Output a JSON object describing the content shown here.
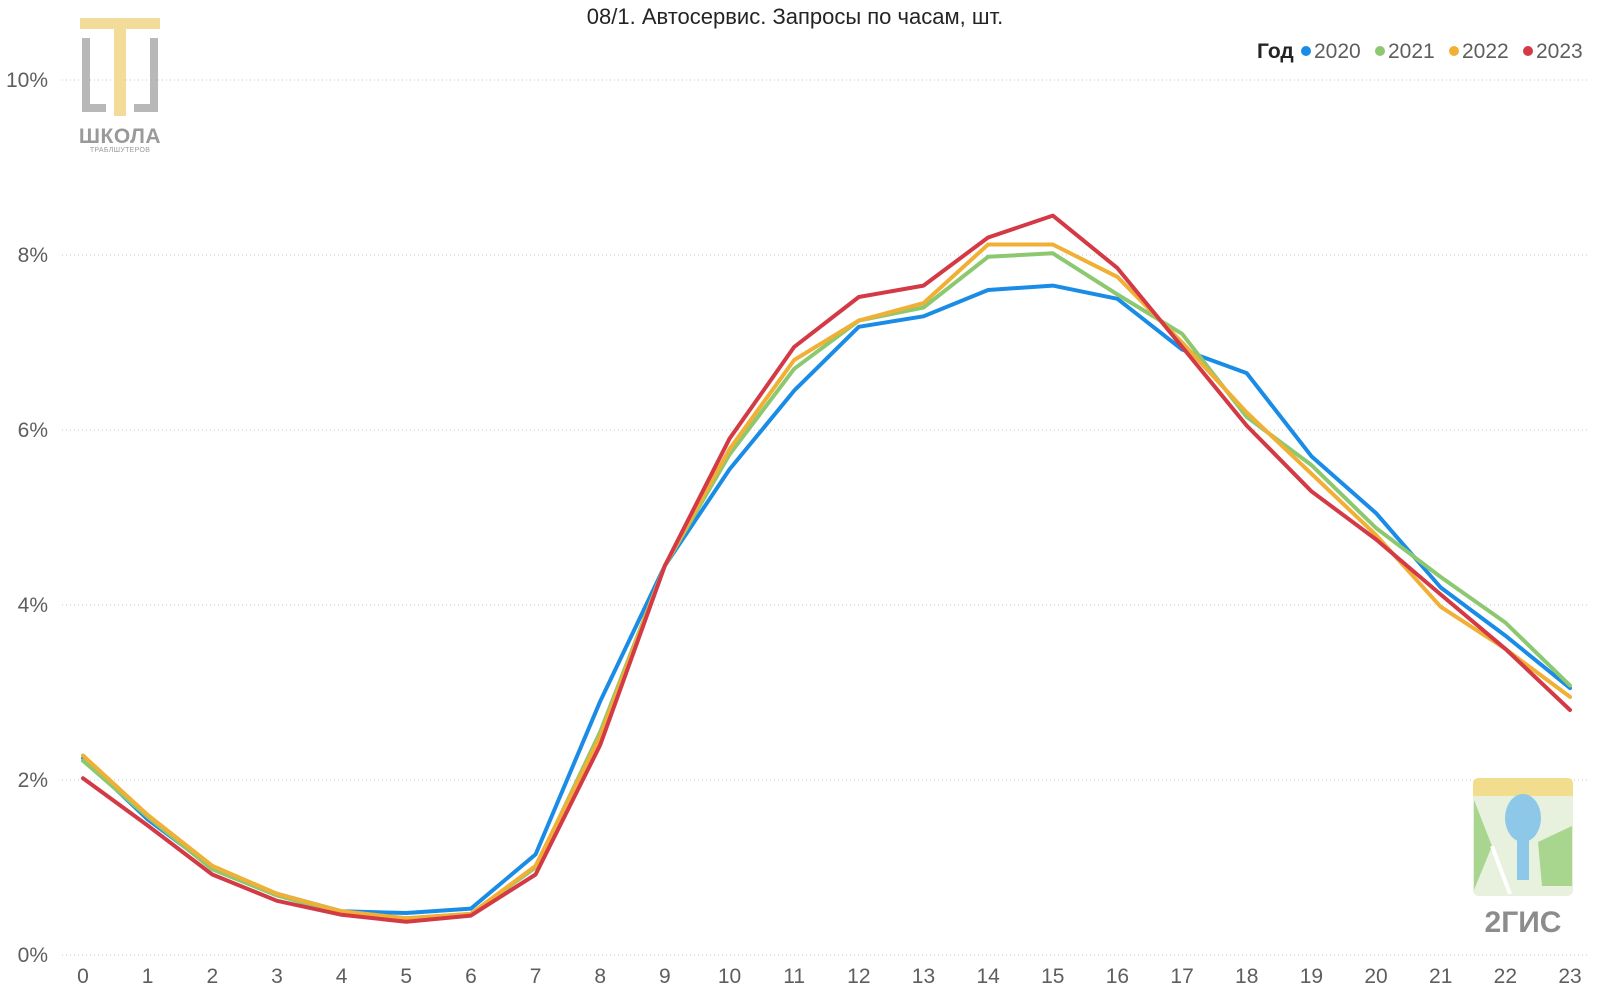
{
  "chart_data": {
    "type": "line",
    "title": "08/1. Автосервис. Запросы по часам, шт.",
    "xlabel": "",
    "ylabel": "",
    "categories": [
      "0",
      "1",
      "2",
      "3",
      "4",
      "5",
      "6",
      "7",
      "8",
      "9",
      "10",
      "11",
      "12",
      "13",
      "14",
      "15",
      "16",
      "17",
      "18",
      "19",
      "20",
      "21",
      "22",
      "23"
    ],
    "ylim": [
      0,
      10
    ],
    "yticks": [
      "0%",
      "2%",
      "4%",
      "6%",
      "8%",
      "10%"
    ],
    "y_tick_values": [
      0,
      2,
      4,
      6,
      8,
      10
    ],
    "grid": true,
    "legend": {
      "title": "Год",
      "placement": "top-right"
    },
    "series": [
      {
        "name": "2020",
        "color": "#1a8ce6",
        "values": [
          2.25,
          1.55,
          1.0,
          0.7,
          0.5,
          0.48,
          0.53,
          1.15,
          2.9,
          4.45,
          5.55,
          6.45,
          7.18,
          7.3,
          7.6,
          7.65,
          7.5,
          6.92,
          6.65,
          5.7,
          5.05,
          4.2,
          3.65,
          3.05
        ]
      },
      {
        "name": "2021",
        "color": "#8cc870",
        "values": [
          2.22,
          1.58,
          0.98,
          0.68,
          0.48,
          0.42,
          0.47,
          1.0,
          2.55,
          4.45,
          5.72,
          6.7,
          7.25,
          7.4,
          7.98,
          8.02,
          7.55,
          7.1,
          6.15,
          5.6,
          4.88,
          4.32,
          3.8,
          3.08
        ]
      },
      {
        "name": "2022",
        "color": "#f0b035",
        "values": [
          2.28,
          1.6,
          1.02,
          0.7,
          0.5,
          0.42,
          0.47,
          1.02,
          2.5,
          4.45,
          5.78,
          6.8,
          7.25,
          7.45,
          8.12,
          8.12,
          7.75,
          7.0,
          6.2,
          5.5,
          4.8,
          3.98,
          3.5,
          2.95
        ]
      },
      {
        "name": "2023",
        "color": "#d33a45",
        "values": [
          2.02,
          1.48,
          0.92,
          0.62,
          0.46,
          0.38,
          0.45,
          0.92,
          2.4,
          4.45,
          5.9,
          6.95,
          7.52,
          7.65,
          8.2,
          8.45,
          7.85,
          6.95,
          6.05,
          5.3,
          4.75,
          4.12,
          3.5,
          2.8
        ]
      }
    ]
  },
  "logos": {
    "school": {
      "line1": "ШКОЛА",
      "line2": "ТРАБЛШУТЕРОВ"
    },
    "twogis": {
      "text": "2ГИС"
    }
  }
}
